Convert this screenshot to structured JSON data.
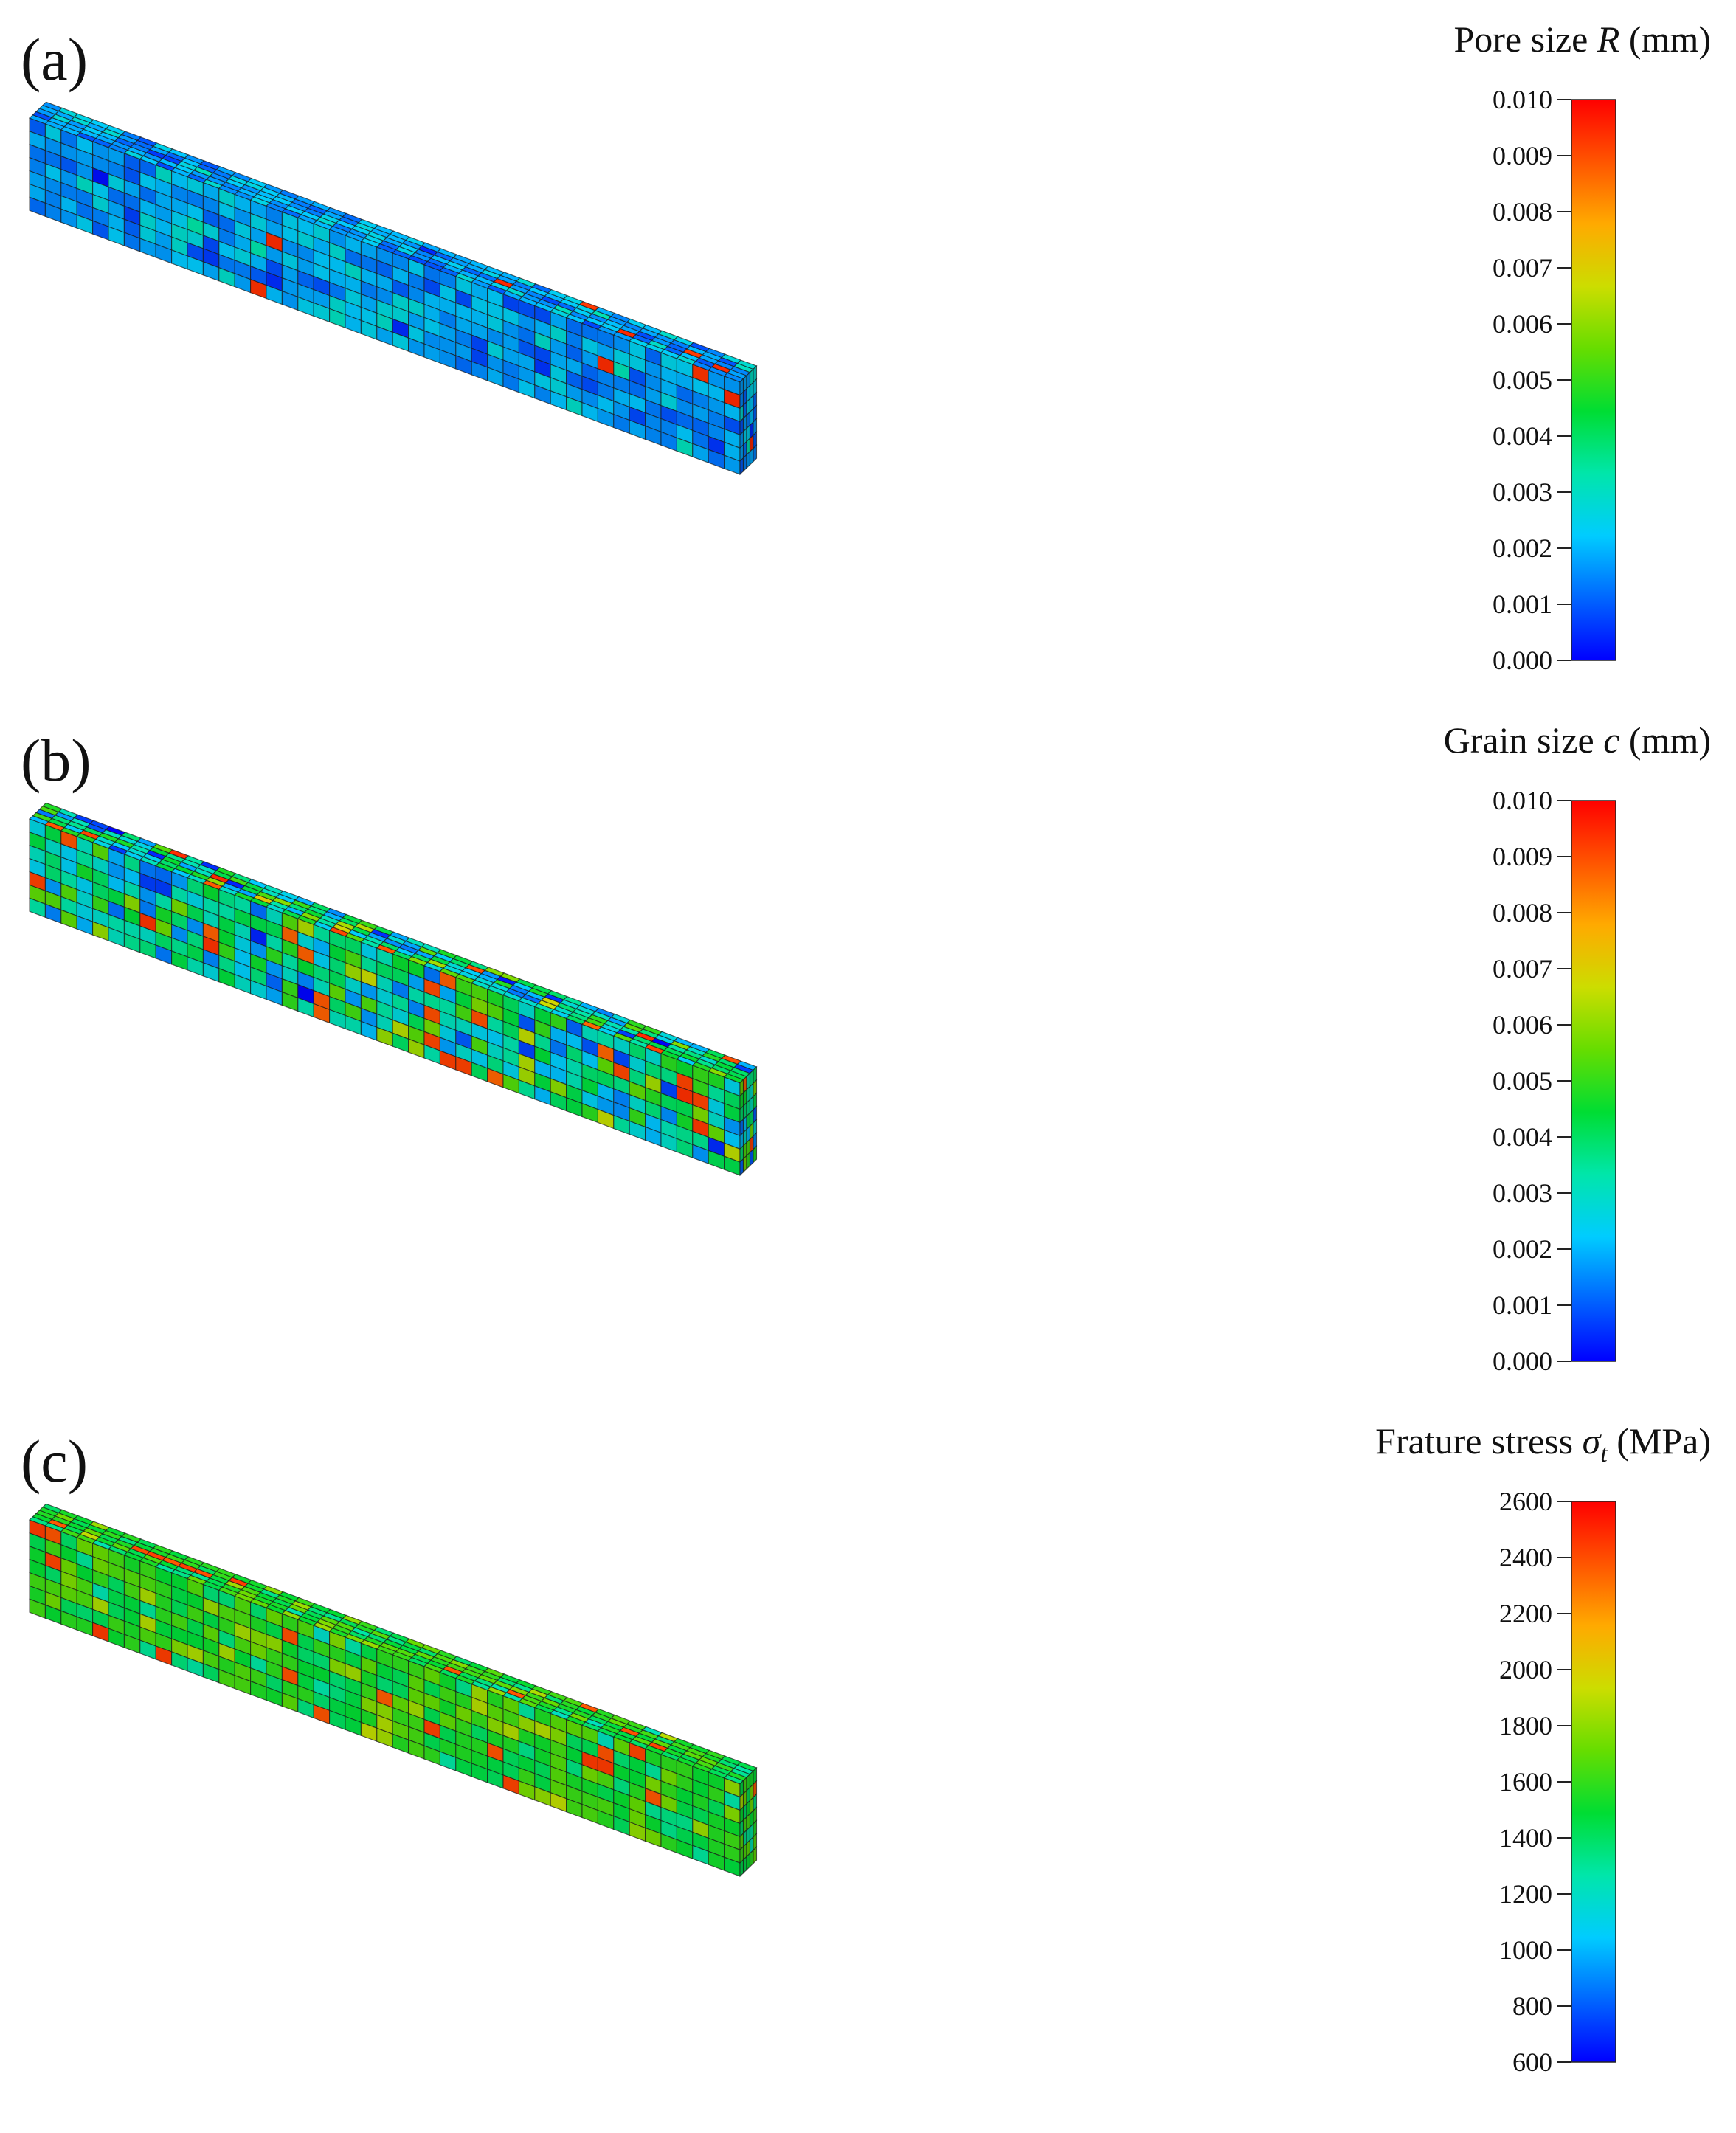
{
  "panels": [
    {
      "id": "a",
      "letter": "(a)",
      "legend": {
        "prefix": "Pore size ",
        "symbol": "R",
        "unit": " (mm)"
      },
      "colorbar": {
        "ticks": [
          "0.010",
          "0.009",
          "0.008",
          "0.007",
          "0.006",
          "0.005",
          "0.004",
          "0.003",
          "0.002",
          "0.001",
          "0.000"
        ],
        "min": 0.0,
        "max": 0.01
      },
      "field": {
        "mean": 0.0018,
        "spread": 0.0012,
        "hot_rate": 0.025,
        "hot_value": 0.0095,
        "seed": 11
      }
    },
    {
      "id": "b",
      "letter": "(b)",
      "legend": {
        "prefix": "Grain size ",
        "symbol": "c",
        "unit": " (mm)"
      },
      "colorbar": {
        "ticks": [
          "0.010",
          "0.009",
          "0.008",
          "0.007",
          "0.006",
          "0.005",
          "0.004",
          "0.003",
          "0.002",
          "0.001",
          "0.000"
        ],
        "min": 0.0,
        "max": 0.01
      },
      "field": {
        "mean": 0.0035,
        "spread": 0.0028,
        "hot_rate": 0.06,
        "hot_value": 0.0095,
        "seed": 23
      }
    },
    {
      "id": "c",
      "letter": "(c)",
      "legend": {
        "prefix": "Frature stress ",
        "symbol": "σ",
        "subscript": "t",
        "unit": " (MPa)"
      },
      "colorbar": {
        "ticks": [
          "2600",
          "2400",
          "2200",
          "2000",
          "1800",
          "1600",
          "1400",
          "1200",
          "1000",
          "800",
          "600"
        ],
        "min": 600,
        "max": 2600
      },
      "field": {
        "mean": 1550,
        "spread": 300,
        "hot_rate": 0.05,
        "hot_value": 2450,
        "seed": 37
      }
    }
  ],
  "colormap": [
    "#0000ff",
    "#0066ff",
    "#00ccff",
    "#00e6aa",
    "#00dd33",
    "#66dd00",
    "#ccdd00",
    "#ffaa00",
    "#ff5500",
    "#ff0000"
  ]
}
